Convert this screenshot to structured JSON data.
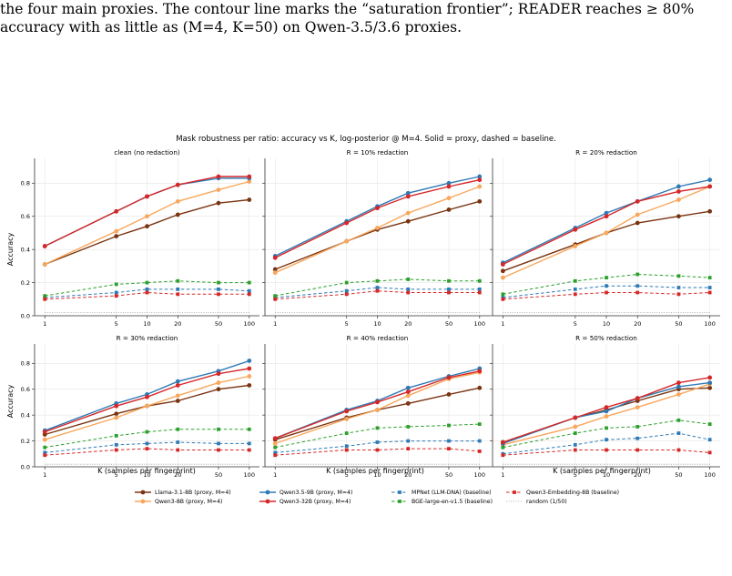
{
  "caption": {
    "line1": "the four main proxies. The contour line marks the “saturation frontier”; READER reaches ≥ 80%",
    "line2": "accuracy with as little as (M=4, K=50) on Qwen-3.5/3.6 proxies."
  },
  "figure": {
    "suptitle": "Mask robustness per ratio: accuracy vs K, log-posterior @ M=4. Solid = proxy, dashed = baseline.",
    "xlabel": "K (samples per fingerprint)",
    "ylabel": "Accuracy"
  },
  "colors": {
    "llama": "#7a3410",
    "qwen3_8b": "#f8a75c",
    "qwen35_9b": "#2f7ab5",
    "qwen3_32b": "#d62728",
    "mpnet": "#2f7ab5",
    "bge": "#2ca02c",
    "qwen3_emb": "#d62728",
    "random": "#9a9a9a"
  },
  "legend": [
    {
      "key": "llama",
      "label": "Llama-3.1-8B (proxy, M=4)",
      "style": "solid",
      "marker": "circle"
    },
    {
      "key": "qwen3_8b",
      "label": "Qwen3-8B (proxy, M=4)",
      "style": "solid",
      "marker": "circle"
    },
    {
      "key": "qwen35_9b",
      "label": "Qwen3.5-9B (proxy, M=4)",
      "style": "solid",
      "marker": "circle"
    },
    {
      "key": "qwen3_32b",
      "label": "Qwen3-32B (proxy, M=4)",
      "style": "solid",
      "marker": "circle"
    },
    {
      "key": "mpnet",
      "label": "MPNet (LLM-DNA) (baseline)",
      "style": "dashed",
      "marker": "square"
    },
    {
      "key": "bge",
      "label": "BGE-large-en-v1.5 (baseline)",
      "style": "dashed",
      "marker": "square"
    },
    {
      "key": "qwen3_emb",
      "label": "Qwen3-Embedding-8B (baseline)",
      "style": "dashed",
      "marker": "square"
    },
    {
      "key": "random",
      "label": "random (1/50)",
      "style": "dotted",
      "marker": "none"
    }
  ],
  "chart_data": [
    {
      "type": "line",
      "title": "clean (no redaction)",
      "x": [
        1,
        5,
        10,
        20,
        50,
        100
      ],
      "xscale": "log",
      "ylim": [
        0,
        0.95
      ],
      "xticks": [
        "1",
        "5",
        "10",
        "20",
        "50",
        "100"
      ],
      "yticks": [
        "0.0",
        "0.2",
        "0.4",
        "0.6",
        "0.8"
      ],
      "grid": true,
      "series": [
        {
          "name": "Llama-3.1-8B (proxy, M=4)",
          "key": "llama",
          "values": [
            0.31,
            0.48,
            0.54,
            0.61,
            0.68,
            0.7
          ]
        },
        {
          "name": "Qwen3-8B (proxy, M=4)",
          "key": "qwen3_8b",
          "values": [
            0.31,
            0.51,
            0.6,
            0.69,
            0.76,
            0.81
          ]
        },
        {
          "name": "Qwen3.5-9B (proxy, M=4)",
          "key": "qwen35_9b",
          "values": [
            0.42,
            0.63,
            0.72,
            0.79,
            0.83,
            0.83
          ]
        },
        {
          "name": "Qwen3-32B (proxy, M=4)",
          "key": "qwen3_32b",
          "values": [
            0.42,
            0.63,
            0.72,
            0.79,
            0.84,
            0.84
          ]
        },
        {
          "name": "MPNet (LLM-DNA) (baseline)",
          "key": "mpnet",
          "values": [
            0.11,
            0.14,
            0.16,
            0.16,
            0.16,
            0.15
          ]
        },
        {
          "name": "BGE-large-en-v1.5 (baseline)",
          "key": "bge",
          "values": [
            0.12,
            0.19,
            0.2,
            0.21,
            0.2,
            0.2
          ]
        },
        {
          "name": "Qwen3-Embedding-8B (baseline)",
          "key": "qwen3_emb",
          "values": [
            0.1,
            0.12,
            0.14,
            0.13,
            0.13,
            0.13
          ]
        },
        {
          "name": "random (1/50)",
          "key": "random",
          "values": [
            0.02,
            0.02,
            0.02,
            0.02,
            0.02,
            0.02
          ]
        }
      ]
    },
    {
      "type": "line",
      "title": "R = 10% redaction",
      "x": [
        1,
        5,
        10,
        20,
        50,
        100
      ],
      "xscale": "log",
      "ylim": [
        0,
        0.95
      ],
      "xticks": [
        "1",
        "5",
        "10",
        "20",
        "50",
        "100"
      ],
      "yticks": [],
      "grid": true,
      "series": [
        {
          "name": "Llama-3.1-8B (proxy, M=4)",
          "key": "llama",
          "values": [
            0.28,
            0.45,
            0.52,
            0.57,
            0.64,
            0.69
          ]
        },
        {
          "name": "Qwen3-8B (proxy, M=4)",
          "key": "qwen3_8b",
          "values": [
            0.26,
            0.45,
            0.53,
            0.62,
            0.71,
            0.78
          ]
        },
        {
          "name": "Qwen3.5-9B (proxy, M=4)",
          "key": "qwen35_9b",
          "values": [
            0.36,
            0.57,
            0.66,
            0.74,
            0.8,
            0.84
          ]
        },
        {
          "name": "Qwen3-32B (proxy, M=4)",
          "key": "qwen3_32b",
          "values": [
            0.35,
            0.56,
            0.65,
            0.72,
            0.78,
            0.82
          ]
        },
        {
          "name": "MPNet (LLM-DNA) (baseline)",
          "key": "mpnet",
          "values": [
            0.11,
            0.15,
            0.17,
            0.16,
            0.16,
            0.16
          ]
        },
        {
          "name": "BGE-large-en-v1.5 (baseline)",
          "key": "bge",
          "values": [
            0.12,
            0.2,
            0.21,
            0.22,
            0.21,
            0.21
          ]
        },
        {
          "name": "Qwen3-Embedding-8B (baseline)",
          "key": "qwen3_emb",
          "values": [
            0.1,
            0.13,
            0.15,
            0.14,
            0.14,
            0.14
          ]
        },
        {
          "name": "random (1/50)",
          "key": "random",
          "values": [
            0.02,
            0.02,
            0.02,
            0.02,
            0.02,
            0.02
          ]
        }
      ]
    },
    {
      "type": "line",
      "title": "R = 20% redaction",
      "x": [
        1,
        5,
        10,
        20,
        50,
        100
      ],
      "xscale": "log",
      "ylim": [
        0,
        0.95
      ],
      "xticks": [
        "1",
        "5",
        "10",
        "20",
        "50",
        "100"
      ],
      "yticks": [],
      "grid": true,
      "series": [
        {
          "name": "Llama-3.1-8B (proxy, M=4)",
          "key": "llama",
          "values": [
            0.27,
            0.43,
            0.5,
            0.56,
            0.6,
            0.63
          ]
        },
        {
          "name": "Qwen3-8B (proxy, M=4)",
          "key": "qwen3_8b",
          "values": [
            0.23,
            0.42,
            0.5,
            0.61,
            0.7,
            0.78
          ]
        },
        {
          "name": "Qwen3.5-9B (proxy, M=4)",
          "key": "qwen35_9b",
          "values": [
            0.32,
            0.53,
            0.62,
            0.69,
            0.78,
            0.82
          ]
        },
        {
          "name": "Qwen3-32B (proxy, M=4)",
          "key": "qwen3_32b",
          "values": [
            0.31,
            0.52,
            0.6,
            0.69,
            0.75,
            0.78
          ]
        },
        {
          "name": "MPNet (LLM-DNA) (baseline)",
          "key": "mpnet",
          "values": [
            0.11,
            0.16,
            0.18,
            0.18,
            0.17,
            0.17
          ]
        },
        {
          "name": "BGE-large-en-v1.5 (baseline)",
          "key": "bge",
          "values": [
            0.13,
            0.21,
            0.23,
            0.25,
            0.24,
            0.23
          ]
        },
        {
          "name": "Qwen3-Embedding-8B (baseline)",
          "key": "qwen3_emb",
          "values": [
            0.1,
            0.13,
            0.14,
            0.14,
            0.13,
            0.14
          ]
        },
        {
          "name": "random (1/50)",
          "key": "random",
          "values": [
            0.02,
            0.02,
            0.02,
            0.02,
            0.02,
            0.02
          ]
        }
      ]
    },
    {
      "type": "line",
      "title": "R = 30% redaction",
      "x": [
        1,
        5,
        10,
        20,
        50,
        100
      ],
      "xscale": "log",
      "ylim": [
        0,
        0.95
      ],
      "xticks": [
        "1",
        "5",
        "10",
        "20",
        "50",
        "100"
      ],
      "yticks": [
        "0.0",
        "0.2",
        "0.4",
        "0.6",
        "0.8"
      ],
      "grid": true,
      "series": [
        {
          "name": "Llama-3.1-8B (proxy, M=4)",
          "key": "llama",
          "values": [
            0.25,
            0.41,
            0.47,
            0.51,
            0.6,
            0.63
          ]
        },
        {
          "name": "Qwen3-8B (proxy, M=4)",
          "key": "qwen3_8b",
          "values": [
            0.21,
            0.38,
            0.47,
            0.55,
            0.65,
            0.7
          ]
        },
        {
          "name": "Qwen3.5-9B (proxy, M=4)",
          "key": "qwen35_9b",
          "values": [
            0.28,
            0.49,
            0.56,
            0.66,
            0.74,
            0.82
          ]
        },
        {
          "name": "Qwen3-32B (proxy, M=4)",
          "key": "qwen3_32b",
          "values": [
            0.27,
            0.47,
            0.54,
            0.63,
            0.72,
            0.76
          ]
        },
        {
          "name": "MPNet (LLM-DNA) (baseline)",
          "key": "mpnet",
          "values": [
            0.11,
            0.17,
            0.18,
            0.19,
            0.18,
            0.18
          ]
        },
        {
          "name": "BGE-large-en-v1.5 (baseline)",
          "key": "bge",
          "values": [
            0.15,
            0.24,
            0.27,
            0.29,
            0.29,
            0.29
          ]
        },
        {
          "name": "Qwen3-Embedding-8B (baseline)",
          "key": "qwen3_emb",
          "values": [
            0.09,
            0.13,
            0.14,
            0.13,
            0.13,
            0.13
          ]
        },
        {
          "name": "random (1/50)",
          "key": "random",
          "values": [
            0.02,
            0.02,
            0.02,
            0.02,
            0.02,
            0.02
          ]
        }
      ]
    },
    {
      "type": "line",
      "title": "R = 40% redaction",
      "x": [
        1,
        5,
        10,
        20,
        50,
        100
      ],
      "xscale": "log",
      "ylim": [
        0,
        0.95
      ],
      "xticks": [
        "1",
        "5",
        "10",
        "20",
        "50",
        "100"
      ],
      "yticks": [],
      "grid": true,
      "series": [
        {
          "name": "Llama-3.1-8B (proxy, M=4)",
          "key": "llama",
          "values": [
            0.21,
            0.38,
            0.44,
            0.49,
            0.56,
            0.61
          ]
        },
        {
          "name": "Qwen3-8B (proxy, M=4)",
          "key": "qwen3_8b",
          "values": [
            0.18,
            0.37,
            0.44,
            0.55,
            0.68,
            0.73
          ]
        },
        {
          "name": "Qwen3.5-9B (proxy, M=4)",
          "key": "qwen35_9b",
          "values": [
            0.22,
            0.44,
            0.51,
            0.61,
            0.7,
            0.76
          ]
        },
        {
          "name": "Qwen3-32B (proxy, M=4)",
          "key": "qwen3_32b",
          "values": [
            0.22,
            0.43,
            0.5,
            0.58,
            0.69,
            0.74
          ]
        },
        {
          "name": "MPNet (LLM-DNA) (baseline)",
          "key": "mpnet",
          "values": [
            0.11,
            0.16,
            0.19,
            0.2,
            0.2,
            0.2
          ]
        },
        {
          "name": "BGE-large-en-v1.5 (baseline)",
          "key": "bge",
          "values": [
            0.15,
            0.26,
            0.3,
            0.31,
            0.32,
            0.33
          ]
        },
        {
          "name": "Qwen3-Embedding-8B (baseline)",
          "key": "qwen3_emb",
          "values": [
            0.09,
            0.13,
            0.13,
            0.14,
            0.14,
            0.12
          ]
        },
        {
          "name": "random (1/50)",
          "key": "random",
          "values": [
            0.02,
            0.02,
            0.02,
            0.02,
            0.02,
            0.02
          ]
        }
      ]
    },
    {
      "type": "line",
      "title": "R = 50% redaction",
      "x": [
        1,
        5,
        10,
        20,
        50,
        100
      ],
      "xscale": "log",
      "ylim": [
        0,
        0.95
      ],
      "xticks": [
        "1",
        "5",
        "10",
        "20",
        "50",
        "100"
      ],
      "yticks": [],
      "grid": true,
      "series": [
        {
          "name": "Llama-3.1-8B (proxy, M=4)",
          "key": "llama",
          "values": [
            0.19,
            0.38,
            0.44,
            0.51,
            0.6,
            0.61
          ]
        },
        {
          "name": "Qwen3-8B (proxy, M=4)",
          "key": "qwen3_8b",
          "values": [
            0.17,
            0.31,
            0.39,
            0.46,
            0.56,
            0.64
          ]
        },
        {
          "name": "Qwen3.5-9B (proxy, M=4)",
          "key": "qwen35_9b",
          "values": [
            0.18,
            0.38,
            0.43,
            0.53,
            0.62,
            0.65
          ]
        },
        {
          "name": "Qwen3-32B (proxy, M=4)",
          "key": "qwen3_32b",
          "values": [
            0.19,
            0.38,
            0.46,
            0.53,
            0.65,
            0.69
          ]
        },
        {
          "name": "MPNet (LLM-DNA) (baseline)",
          "key": "mpnet",
          "values": [
            0.1,
            0.17,
            0.21,
            0.22,
            0.26,
            0.21
          ]
        },
        {
          "name": "BGE-large-en-v1.5 (baseline)",
          "key": "bge",
          "values": [
            0.15,
            0.26,
            0.3,
            0.31,
            0.36,
            0.33
          ]
        },
        {
          "name": "Qwen3-Embedding-8B (baseline)",
          "key": "qwen3_emb",
          "values": [
            0.09,
            0.13,
            0.13,
            0.13,
            0.13,
            0.11
          ]
        },
        {
          "name": "random (1/50)",
          "key": "random",
          "values": [
            0.02,
            0.02,
            0.02,
            0.02,
            0.02,
            0.02
          ]
        }
      ]
    }
  ]
}
